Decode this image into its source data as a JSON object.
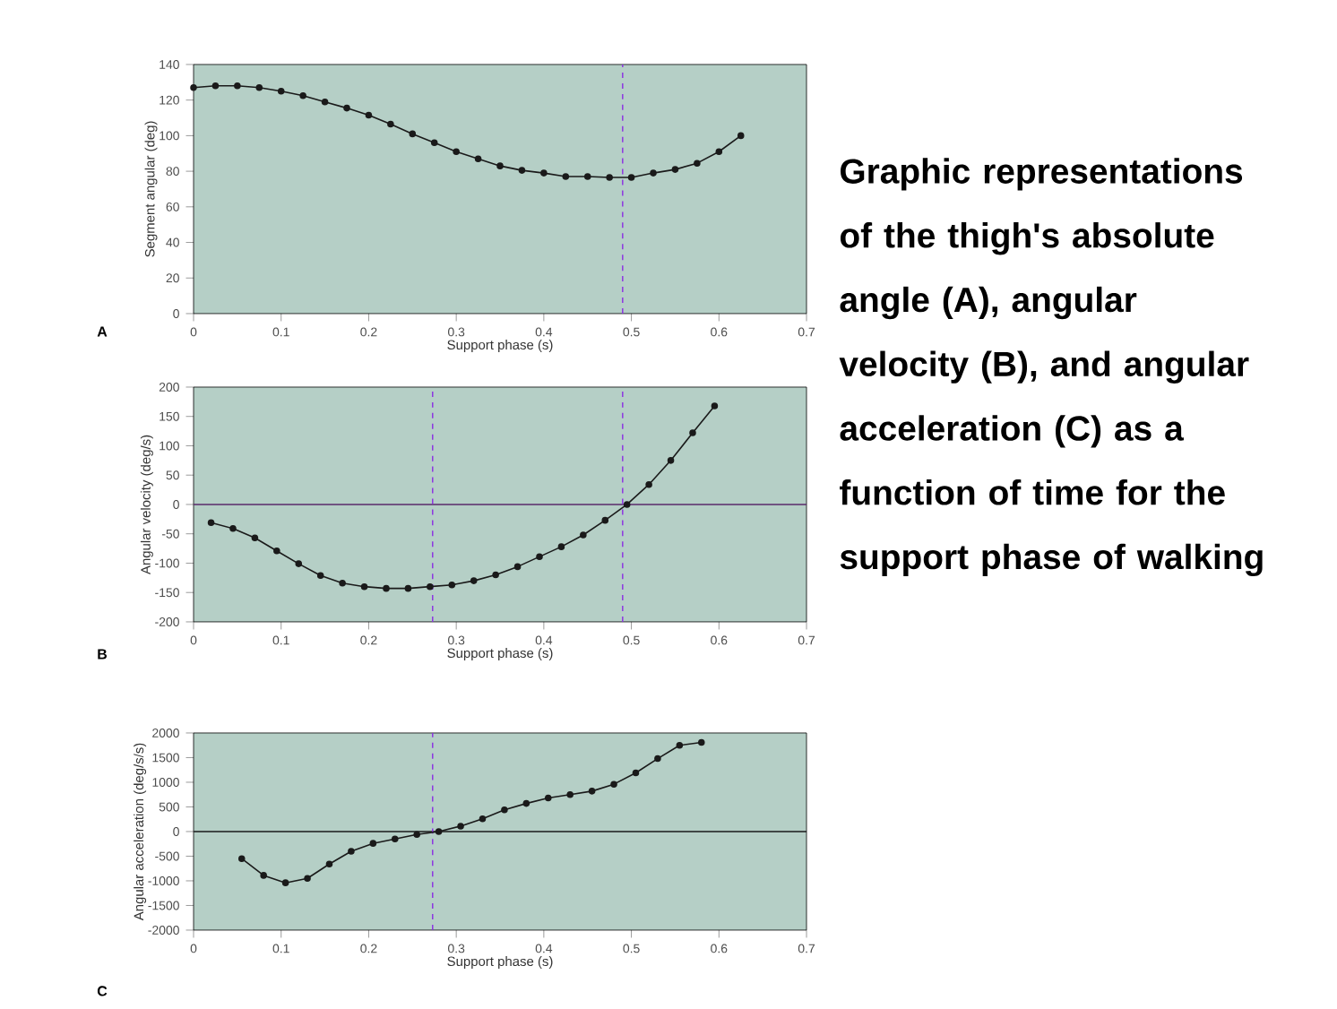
{
  "chart_data": [
    {
      "type": "line",
      "xlabel": "Support phase (s)",
      "ylabel": "Segment angular (deg)",
      "annotations": [
        "A"
      ],
      "marker": "circle",
      "line_style": "solid",
      "grid": false,
      "xlim": [
        0,
        0.7
      ],
      "ylim": [
        0,
        140
      ],
      "xticks": [
        0,
        0.1,
        0.2,
        0.3,
        0.4,
        0.5,
        0.6,
        0.7
      ],
      "yticks": [
        0,
        20,
        40,
        60,
        80,
        100,
        120,
        140
      ],
      "ref_lines": [
        {
          "axis": "x",
          "value": 0.49,
          "color": "#8a2be2",
          "line_style": "dashed"
        }
      ],
      "series": [
        {
          "color": "#1a1a1a",
          "x": [
            0,
            0.025,
            0.05,
            0.075,
            0.1,
            0.125,
            0.15,
            0.175,
            0.2,
            0.225,
            0.25,
            0.275,
            0.3,
            0.325,
            0.35,
            0.375,
            0.4,
            0.425,
            0.45,
            0.475,
            0.5,
            0.525,
            0.55,
            0.575,
            0.6,
            0.625
          ],
          "values": [
            127,
            128,
            128,
            127,
            125,
            122.5,
            119,
            115.5,
            111.5,
            106.5,
            101,
            96,
            91,
            87,
            83,
            80.5,
            79,
            77,
            77,
            76.5,
            76.5,
            79,
            81,
            84.5,
            91,
            100
          ]
        }
      ]
    },
    {
      "type": "line",
      "xlabel": "Support phase (s)",
      "ylabel": "Angular velocity (deg/s)",
      "annotations": [
        "B"
      ],
      "marker": "circle",
      "line_style": "solid",
      "grid": false,
      "xlim": [
        0,
        0.7
      ],
      "ylim": [
        -200,
        200
      ],
      "xticks": [
        0,
        0.1,
        0.2,
        0.3,
        0.4,
        0.5,
        0.6,
        0.7
      ],
      "yticks": [
        -200,
        -150,
        -100,
        -50,
        0,
        50,
        100,
        150,
        200
      ],
      "ref_lines": [
        {
          "axis": "y",
          "value": 0,
          "color": "#5a2a6a",
          "line_style": "solid"
        },
        {
          "axis": "x",
          "value": 0.49,
          "color": "#8a2be2",
          "line_style": "dashed"
        },
        {
          "axis": "x",
          "value": 0.273,
          "color": "#8a2be2",
          "line_style": "dashed"
        }
      ],
      "series": [
        {
          "color": "#1a1a1a",
          "x": [
            0.02,
            0.045,
            0.07,
            0.095,
            0.12,
            0.145,
            0.17,
            0.195,
            0.22,
            0.245,
            0.27,
            0.295,
            0.32,
            0.345,
            0.37,
            0.395,
            0.42,
            0.445,
            0.47,
            0.495,
            0.52,
            0.545,
            0.57,
            0.595
          ],
          "values": [
            -31,
            -41,
            -57,
            -79,
            -101,
            -121,
            -134,
            -140,
            -143,
            -143,
            -140,
            -137,
            -130,
            -120,
            -106,
            -89,
            -72,
            -52,
            -27,
            0,
            34,
            75,
            122,
            168
          ]
        }
      ]
    },
    {
      "type": "line",
      "xlabel": "Support phase (s)",
      "ylabel": "Angular acceleration (deg/s/s)",
      "annotations": [
        "C"
      ],
      "marker": "circle",
      "line_style": "solid",
      "grid": false,
      "xlim": [
        0,
        0.7
      ],
      "ylim": [
        -2000,
        2000
      ],
      "xticks": [
        0,
        0.1,
        0.2,
        0.3,
        0.4,
        0.5,
        0.6,
        0.7
      ],
      "yticks": [
        -2000,
        -1500,
        -1000,
        -500,
        0,
        500,
        1000,
        1500,
        2000
      ],
      "ref_lines": [
        {
          "axis": "y",
          "value": 0,
          "color": "#1a1a1a",
          "line_style": "solid"
        },
        {
          "axis": "x",
          "value": 0.273,
          "color": "#8a2be2",
          "line_style": "dashed"
        }
      ],
      "series": [
        {
          "color": "#1a1a1a",
          "x": [
            0.055,
            0.08,
            0.105,
            0.13,
            0.155,
            0.18,
            0.205,
            0.23,
            0.255,
            0.28,
            0.305,
            0.33,
            0.355,
            0.38,
            0.405,
            0.43,
            0.455,
            0.48,
            0.505,
            0.53,
            0.555,
            0.58
          ],
          "values": [
            -550,
            -890,
            -1040,
            -950,
            -660,
            -400,
            -240,
            -150,
            -60,
            0,
            110,
            260,
            440,
            570,
            680,
            750,
            820,
            960,
            1190,
            1480,
            1750,
            1810
          ]
        }
      ]
    },
    {
      "type": "other",
      "title": "Graphic representations of the thigh's absolute angle (A), angular velocity (B), and angular acceleration (C) as a function of time for the support phase of walking"
    }
  ]
}
